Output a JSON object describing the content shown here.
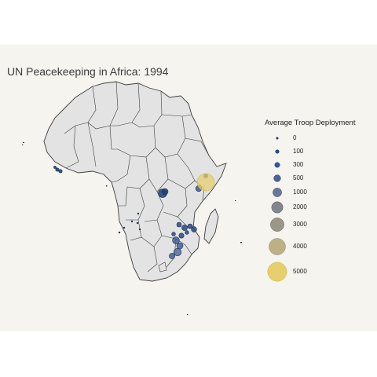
{
  "title": "UN Peacekeeping in Africa: 1994",
  "legend": {
    "title": "Average Troop Deployment",
    "items": [
      {
        "label": "0",
        "value": 0,
        "color": "#1f3f7a"
      },
      {
        "label": "100",
        "value": 100,
        "color": "#2a4a83"
      },
      {
        "label": "300",
        "value": 300,
        "color": "#3a5890"
      },
      {
        "label": "500",
        "value": 500,
        "color": "#4c6595"
      },
      {
        "label": "1000",
        "value": 1000,
        "color": "#6a7699"
      },
      {
        "label": "2000",
        "value": 2000,
        "color": "#82868e"
      },
      {
        "label": "3000",
        "value": 3000,
        "color": "#999788"
      },
      {
        "label": "4000",
        "value": 4000,
        "color": "#bdb085"
      },
      {
        "label": "5000",
        "value": 5000,
        "color": "#e8cf6e"
      }
    ]
  },
  "colors": {
    "land": "#e3e3e3",
    "border": "#3c3c3c",
    "panel": "#f5f4ef"
  }
}
